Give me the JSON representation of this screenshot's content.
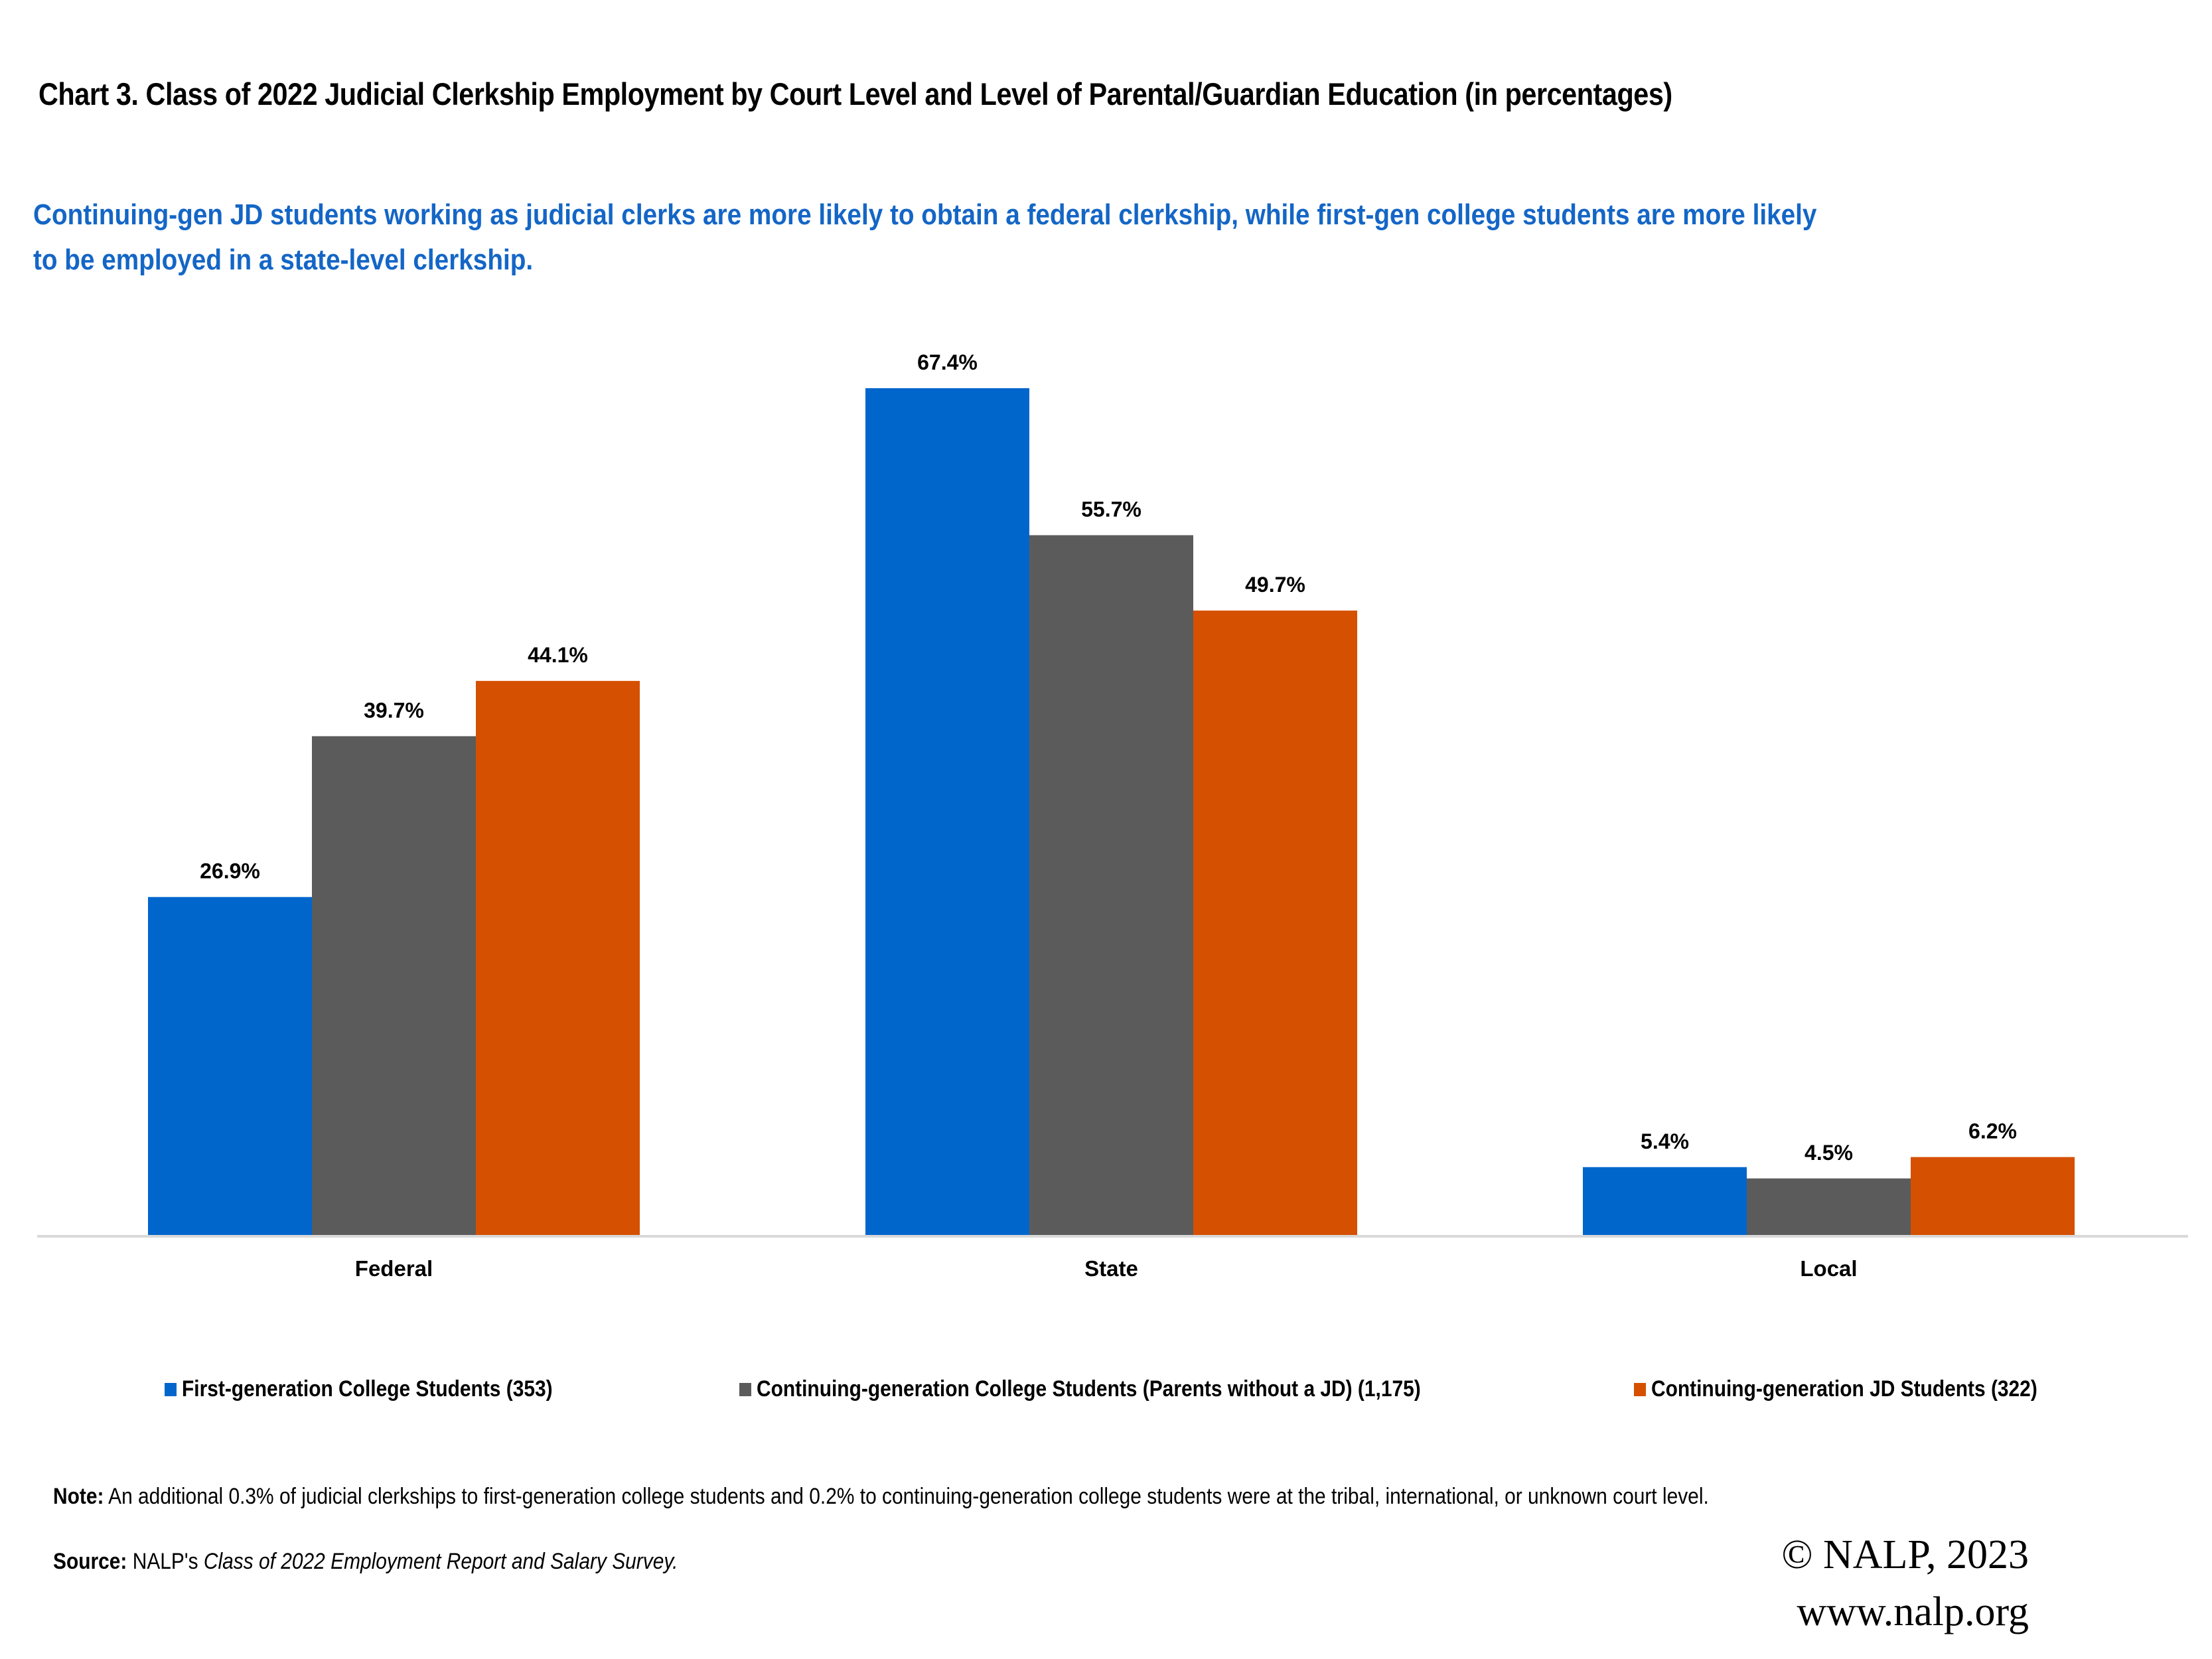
{
  "header": {
    "title": "Chart 3. Class of 2022 Judicial Clerkship Employment by Court Level and Level of Parental/Guardian Education (in percentages)",
    "subtitle": "Continuing-gen JD students working as judicial clerks are more likely to obtain a federal clerkship, while first-gen college students are more likely to be employed in a state-level clerkship."
  },
  "chart_data": {
    "type": "bar",
    "title": "Chart 3. Class of 2022 Judicial Clerkship Employment by Court Level and Level of Parental/Guardian Education (in percentages)",
    "subtitle": "Continuing-gen JD students working as judicial clerks are more likely to obtain a federal clerkship, while first-gen college students are more likely to be employed in a state-level clerkship.",
    "xlabel": "",
    "ylabel": "",
    "categories": [
      "Federal",
      "State",
      "Local"
    ],
    "series": [
      {
        "name": "First-generation College Students (353)",
        "color": "#0066CC",
        "values": [
          26.9,
          67.4,
          5.4
        ]
      },
      {
        "name": "Continuing-generation College Students (Parents without a JD) (1,175)",
        "color": "#5B5B5B",
        "values": [
          39.7,
          55.7,
          4.5
        ]
      },
      {
        "name": "Continuing-generation JD Students (322)",
        "color": "#D55000",
        "values": [
          44.1,
          49.7,
          6.2
        ]
      }
    ],
    "value_suffix": "%",
    "ylim": [
      0,
      67.4
    ],
    "y_axis_visible": false,
    "grid": false,
    "legend_position": "bottom",
    "data_labels": true
  },
  "footer": {
    "note_label": "Note:",
    "note_text": " An additional 0.3% of judicial clerkships to first-generation college students and 0.2% to continuing-generation college students were at the tribal, international, or unknown court level.",
    "source_label": "Source:",
    "source_prefix": " NALP's ",
    "source_italic": "Class of 2022 Employment Report and Salary Survey.",
    "copyright": "© NALP, 2023",
    "website": "www.nalp.org"
  }
}
